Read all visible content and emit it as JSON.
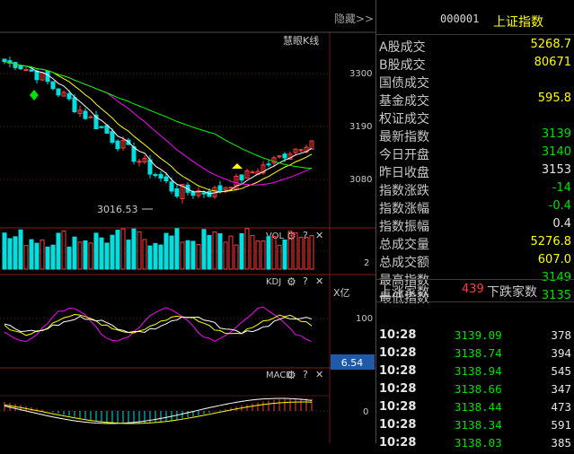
{
  "chart_header": {
    "hide_label": "隐藏>>",
    "kline_label": "慧眼K线"
  },
  "main_axis": {
    "ticks": [
      "3300",
      "3190",
      "3080"
    ],
    "low_annotation": "3016.53"
  },
  "vol_panel": {
    "label": "VOL",
    "tick": "2",
    "unit": "X亿"
  },
  "kdj_panel": {
    "label": "KDJ",
    "tick": "100",
    "current_badge": "6.54"
  },
  "macd_panel": {
    "label": "MACD",
    "tick": "0"
  },
  "panel_icons": [
    "gear-icon",
    "question-icon",
    "close-icon"
  ],
  "quote": {
    "code": "000001",
    "name": "上证指数",
    "stats": [
      {
        "label": "A股成交",
        "value": "5268.7",
        "color": "#ffff00"
      },
      {
        "label": "B股成交",
        "value": "80671",
        "color": "#ffff00"
      },
      {
        "label": "国债成交",
        "value": "",
        "color": "#ffff00"
      },
      {
        "label": "基金成交",
        "value": "595.8",
        "color": "#ffff00"
      },
      {
        "label": "权证成交",
        "value": "",
        "color": "#ffff00"
      },
      {
        "label": "最新指数",
        "value": "3139",
        "color": "#00e000"
      },
      {
        "label": "今日开盘",
        "value": "3140",
        "color": "#00e000"
      },
      {
        "label": "昨日收盘",
        "value": "3153",
        "color": "#e6e6e6"
      },
      {
        "label": "指数涨跌",
        "value": "-14",
        "color": "#00e000"
      },
      {
        "label": "指数涨幅",
        "value": "-0.4",
        "color": "#00e000"
      },
      {
        "label": "指数振幅",
        "value": "0.4",
        "color": "#e6e6e6"
      },
      {
        "label": "总成交量",
        "value": "5276.8",
        "color": "#ffff00"
      },
      {
        "label": "总成交额",
        "value": "607.0",
        "color": "#ffff00"
      },
      {
        "label": "最高指数",
        "value": "3149",
        "color": "#00e000"
      },
      {
        "label": "最低指数",
        "value": "3135",
        "color": "#00e000"
      }
    ],
    "breadth": {
      "up_label": "上涨家数",
      "up_value": "439",
      "down_label": "下跌家数"
    },
    "ticks": [
      {
        "time": "10:28",
        "price": "3139.09",
        "vol": "378"
      },
      {
        "time": "10:28",
        "price": "3138.74",
        "vol": "394"
      },
      {
        "time": "10:28",
        "price": "3138.94",
        "vol": "545"
      },
      {
        "time": "10:28",
        "price": "3138.66",
        "vol": "347"
      },
      {
        "time": "10:28",
        "price": "3138.44",
        "vol": "473"
      },
      {
        "time": "10:28",
        "price": "3138.34",
        "vol": "591"
      },
      {
        "time": "10:28",
        "price": "3138.03",
        "vol": "385"
      }
    ]
  },
  "colors": {
    "up": "#ff3c3c",
    "down": "#00e0e0",
    "ma5": "#ffffff",
    "ma10": "#ffff00",
    "ma20": "#ff00ff",
    "ma60": "#00ff00"
  }
}
